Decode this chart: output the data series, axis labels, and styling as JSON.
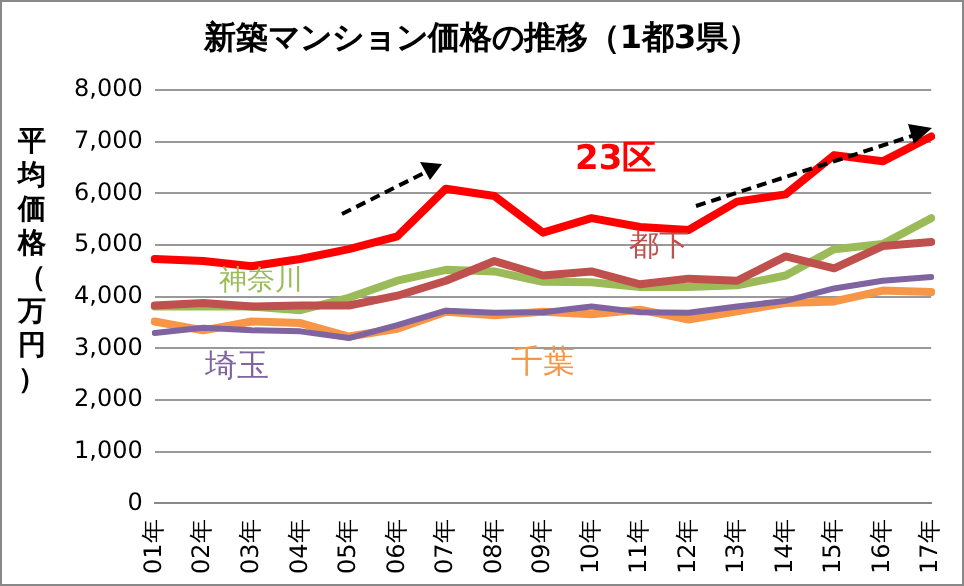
{
  "chart_data": {
    "type": "line",
    "title": "新築マンション価格の推移（1都3県）",
    "ylabel": "平均価格（万円）",
    "categories": [
      "01年",
      "02年",
      "03年",
      "04年",
      "05年",
      "06年",
      "07年",
      "08年",
      "09年",
      "10年",
      "11年",
      "12年",
      "13年",
      "14年",
      "15年",
      "16年",
      "17年"
    ],
    "series": [
      {
        "name": "23区",
        "color": "#ff0000",
        "values": [
          4730,
          4690,
          4590,
          4730,
          4920,
          5170,
          6090,
          5950,
          5240,
          5520,
          5350,
          5290,
          5840,
          5980,
          6740,
          6620,
          7100
        ]
      },
      {
        "name": "都下",
        "color": "#c0504d",
        "values": [
          3830,
          3880,
          3810,
          3830,
          3830,
          4020,
          4310,
          4690,
          4410,
          4490,
          4240,
          4350,
          4310,
          4780,
          4550,
          4980,
          5060
        ]
      },
      {
        "name": "神奈川",
        "color": "#9bbb59",
        "values": [
          3810,
          3810,
          3810,
          3740,
          3980,
          4310,
          4520,
          4490,
          4290,
          4280,
          4190,
          4190,
          4220,
          4410,
          4920,
          5020,
          5520
        ]
      },
      {
        "name": "埼玉",
        "color": "#8064a2",
        "values": [
          3300,
          3400,
          3350,
          3330,
          3200,
          3450,
          3730,
          3690,
          3700,
          3810,
          3700,
          3690,
          3810,
          3920,
          4160,
          4310,
          4380
        ]
      },
      {
        "name": "千葉",
        "color": "#f79646",
        "values": [
          3520,
          3350,
          3520,
          3490,
          3230,
          3380,
          3710,
          3640,
          3710,
          3660,
          3750,
          3560,
          3720,
          3880,
          3910,
          4120,
          4090
        ]
      }
    ],
    "ylim": [
      0,
      8000
    ],
    "yticks": [
      {
        "value": 0,
        "label": "0"
      },
      {
        "value": 1000,
        "label": "1,000"
      },
      {
        "value": 2000,
        "label": "2,000"
      },
      {
        "value": 3000,
        "label": "3,000"
      },
      {
        "value": 4000,
        "label": "4,000"
      },
      {
        "value": 5000,
        "label": "5,000"
      },
      {
        "value": 6000,
        "label": "6,000"
      },
      {
        "value": 7000,
        "label": "7,000"
      },
      {
        "value": 8000,
        "label": "8,000"
      }
    ],
    "grid": "y",
    "legend": false,
    "marker": "none",
    "line_style": "solid"
  }
}
